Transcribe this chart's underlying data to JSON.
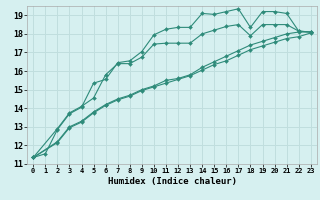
{
  "xlabel": "Humidex (Indice chaleur)",
  "bg_color": "#d6f0f0",
  "line_color": "#2e8b7a",
  "grid_color": "#c0dede",
  "xlim": [
    -0.5,
    23.5
  ],
  "ylim": [
    11,
    19.5
  ],
  "yticks": [
    11,
    12,
    13,
    14,
    15,
    16,
    17,
    18,
    19
  ],
  "xticks": [
    0,
    1,
    2,
    3,
    4,
    5,
    6,
    7,
    8,
    9,
    10,
    11,
    12,
    13,
    14,
    15,
    16,
    17,
    18,
    19,
    20,
    21,
    22,
    23
  ],
  "series": [
    {
      "x": [
        0,
        1,
        2,
        3,
        4,
        5,
        6,
        7,
        8,
        9,
        10,
        11,
        12,
        13,
        14,
        15,
        16,
        17,
        18,
        19,
        20,
        21,
        22,
        23
      ],
      "y": [
        11.35,
        11.55,
        12.85,
        13.7,
        14.05,
        15.35,
        15.55,
        16.45,
        16.55,
        17.05,
        17.95,
        18.25,
        18.35,
        18.35,
        19.1,
        19.05,
        19.2,
        19.35,
        18.35,
        19.2,
        19.2,
        19.1,
        18.15,
        18.1
      ]
    },
    {
      "x": [
        0,
        2,
        3,
        4,
        5,
        6,
        7,
        8,
        9,
        10,
        11,
        12,
        13,
        14,
        15,
        16,
        17,
        18,
        19,
        20,
        21,
        22,
        23
      ],
      "y": [
        11.35,
        12.9,
        13.75,
        14.1,
        14.55,
        15.8,
        16.4,
        16.4,
        16.75,
        17.45,
        17.5,
        17.5,
        17.5,
        18.0,
        18.2,
        18.4,
        18.5,
        17.9,
        18.5,
        18.5,
        18.5,
        18.15,
        18.1
      ]
    },
    {
      "x": [
        0,
        2,
        3,
        4,
        5,
        6,
        7,
        8,
        9,
        10,
        11,
        12,
        13,
        14,
        15,
        16,
        17,
        18,
        19,
        20,
        21,
        22,
        23
      ],
      "y": [
        11.35,
        12.2,
        13.0,
        13.3,
        13.8,
        14.2,
        14.5,
        14.7,
        15.0,
        15.2,
        15.5,
        15.6,
        15.8,
        16.2,
        16.5,
        16.8,
        17.1,
        17.4,
        17.6,
        17.8,
        18.0,
        18.1,
        18.1
      ]
    },
    {
      "x": [
        0,
        2,
        3,
        4,
        5,
        6,
        7,
        8,
        9,
        10,
        11,
        12,
        13,
        14,
        15,
        16,
        17,
        18,
        19,
        20,
        21,
        22,
        23
      ],
      "y": [
        11.35,
        12.15,
        12.95,
        13.25,
        13.75,
        14.15,
        14.45,
        14.65,
        14.95,
        15.15,
        15.35,
        15.55,
        15.75,
        16.05,
        16.35,
        16.55,
        16.85,
        17.15,
        17.35,
        17.55,
        17.75,
        17.85,
        18.05
      ]
    }
  ]
}
